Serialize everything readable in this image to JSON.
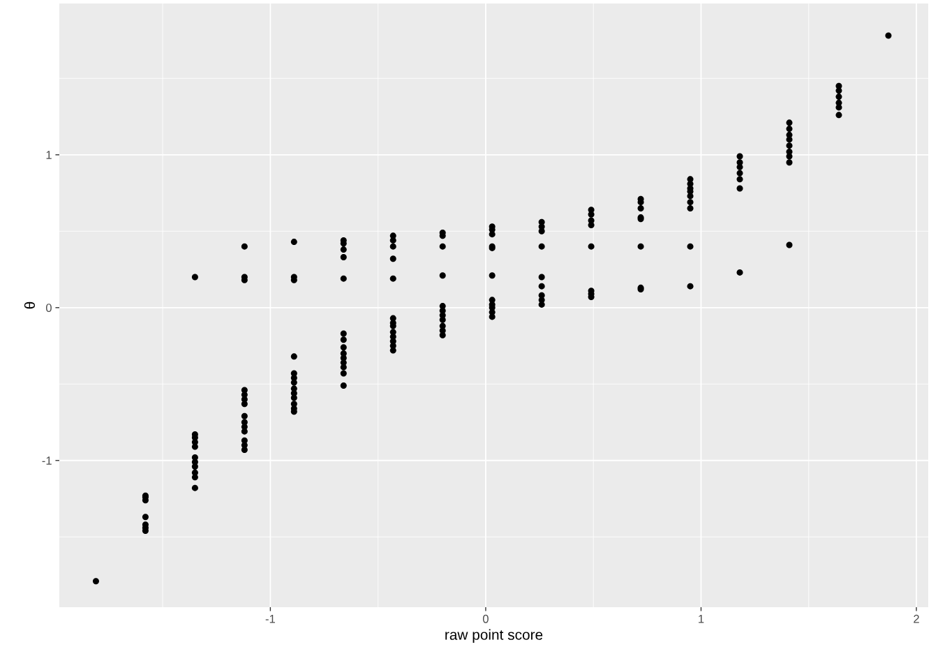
{
  "chart_data": {
    "type": "scatter",
    "xlabel": "raw point score",
    "ylabel": "θ",
    "xlim": [
      -1.98,
      2.055
    ],
    "ylim": [
      -1.96,
      1.99
    ],
    "xticks": [
      {
        "value": -1.5,
        "label": null
      },
      -1,
      {
        "value": -0.5,
        "label": null
      },
      0,
      {
        "value": 0.5,
        "label": null
      },
      1,
      {
        "value": 1.5,
        "label": null
      },
      2
    ],
    "yticks": [
      {
        "value": -1.5,
        "label": null
      },
      -1,
      {
        "value": -0.5,
        "label": null
      },
      0,
      {
        "value": 0.5,
        "label": null
      },
      1,
      {
        "value": 1.5,
        "label": null
      }
    ],
    "grid": true,
    "marker": "circle",
    "series": [
      {
        "color": "#000000",
        "x": [
          -1.81,
          -1.58,
          -1.58,
          -1.58,
          -1.58,
          -1.58,
          -1.58,
          -1.58,
          -1.35,
          -1.35,
          -1.35,
          -1.35,
          -1.35,
          -1.35,
          -1.35,
          -1.35,
          -1.35,
          -1.35,
          -1.35,
          -1.12,
          -1.12,
          -1.12,
          -1.12,
          -1.12,
          -1.12,
          -1.12,
          -1.12,
          -1.12,
          -1.12,
          -1.12,
          -1.12,
          -1.12,
          -1.12,
          -0.89,
          -0.89,
          -0.89,
          -0.89,
          -0.89,
          -0.89,
          -0.89,
          -0.89,
          -0.89,
          -0.89,
          -0.89,
          -0.89,
          -0.89,
          -0.66,
          -0.66,
          -0.66,
          -0.66,
          -0.66,
          -0.66,
          -0.66,
          -0.66,
          -0.66,
          -0.66,
          -0.66,
          -0.66,
          -0.66,
          -0.66,
          -0.43,
          -0.43,
          -0.43,
          -0.43,
          -0.43,
          -0.43,
          -0.43,
          -0.43,
          -0.43,
          -0.43,
          -0.43,
          -0.43,
          -0.43,
          -0.2,
          -0.2,
          -0.2,
          -0.2,
          -0.2,
          -0.2,
          -0.2,
          -0.2,
          -0.2,
          -0.2,
          -0.2,
          0.03,
          0.03,
          0.03,
          0.03,
          0.03,
          0.03,
          0.03,
          0.03,
          0.03,
          0.03,
          0.03,
          0.26,
          0.26,
          0.26,
          0.26,
          0.26,
          0.26,
          0.26,
          0.26,
          0.26,
          0.49,
          0.49,
          0.49,
          0.49,
          0.49,
          0.49,
          0.49,
          0.49,
          0.72,
          0.72,
          0.72,
          0.72,
          0.72,
          0.72,
          0.72,
          0.72,
          0.95,
          0.95,
          0.95,
          0.95,
          0.95,
          0.95,
          0.95,
          0.95,
          0.95,
          1.18,
          1.18,
          1.18,
          1.18,
          1.18,
          1.18,
          1.18,
          1.41,
          1.41,
          1.41,
          1.41,
          1.41,
          1.41,
          1.41,
          1.41,
          1.41,
          1.64,
          1.64,
          1.64,
          1.64,
          1.64,
          1.64,
          1.87
        ],
        "values": [
          -1.79,
          -1.23,
          -1.24,
          -1.26,
          -1.37,
          -1.42,
          -1.44,
          -1.46,
          0.2,
          -0.83,
          -0.85,
          -0.88,
          -0.91,
          -0.98,
          -1.01,
          -1.04,
          -1.08,
          -1.11,
          -1.18,
          0.4,
          0.2,
          0.18,
          -0.54,
          -0.57,
          -0.6,
          -0.63,
          -0.71,
          -0.75,
          -0.78,
          -0.81,
          -0.87,
          -0.9,
          -0.93,
          0.43,
          0.2,
          0.18,
          -0.32,
          -0.43,
          -0.46,
          -0.49,
          -0.53,
          -0.56,
          -0.59,
          -0.63,
          -0.66,
          -0.68,
          0.44,
          0.42,
          0.38,
          0.33,
          0.19,
          -0.17,
          -0.21,
          -0.26,
          -0.3,
          -0.33,
          -0.36,
          -0.39,
          -0.43,
          -0.51,
          0.47,
          0.44,
          0.4,
          0.32,
          0.19,
          -0.07,
          -0.1,
          -0.12,
          -0.16,
          -0.19,
          -0.22,
          -0.25,
          -0.28,
          0.49,
          0.47,
          0.4,
          0.21,
          0.01,
          -0.02,
          -0.05,
          -0.08,
          -0.12,
          -0.15,
          -0.18,
          0.53,
          0.51,
          0.48,
          0.4,
          0.39,
          0.21,
          0.05,
          0.02,
          0.0,
          -0.03,
          -0.06,
          0.56,
          0.53,
          0.5,
          0.4,
          0.2,
          0.14,
          0.08,
          0.05,
          0.02,
          0.64,
          0.61,
          0.57,
          0.54,
          0.4,
          0.11,
          0.09,
          0.07,
          0.71,
          0.69,
          0.65,
          0.59,
          0.58,
          0.4,
          0.13,
          0.12,
          0.84,
          0.81,
          0.78,
          0.76,
          0.73,
          0.69,
          0.65,
          0.4,
          0.14,
          0.99,
          0.95,
          0.92,
          0.88,
          0.84,
          0.78,
          0.23,
          1.21,
          1.17,
          1.13,
          1.1,
          1.06,
          1.02,
          0.99,
          0.95,
          0.41,
          1.45,
          1.42,
          1.38,
          1.34,
          1.31,
          1.26,
          1.78
        ]
      }
    ]
  }
}
